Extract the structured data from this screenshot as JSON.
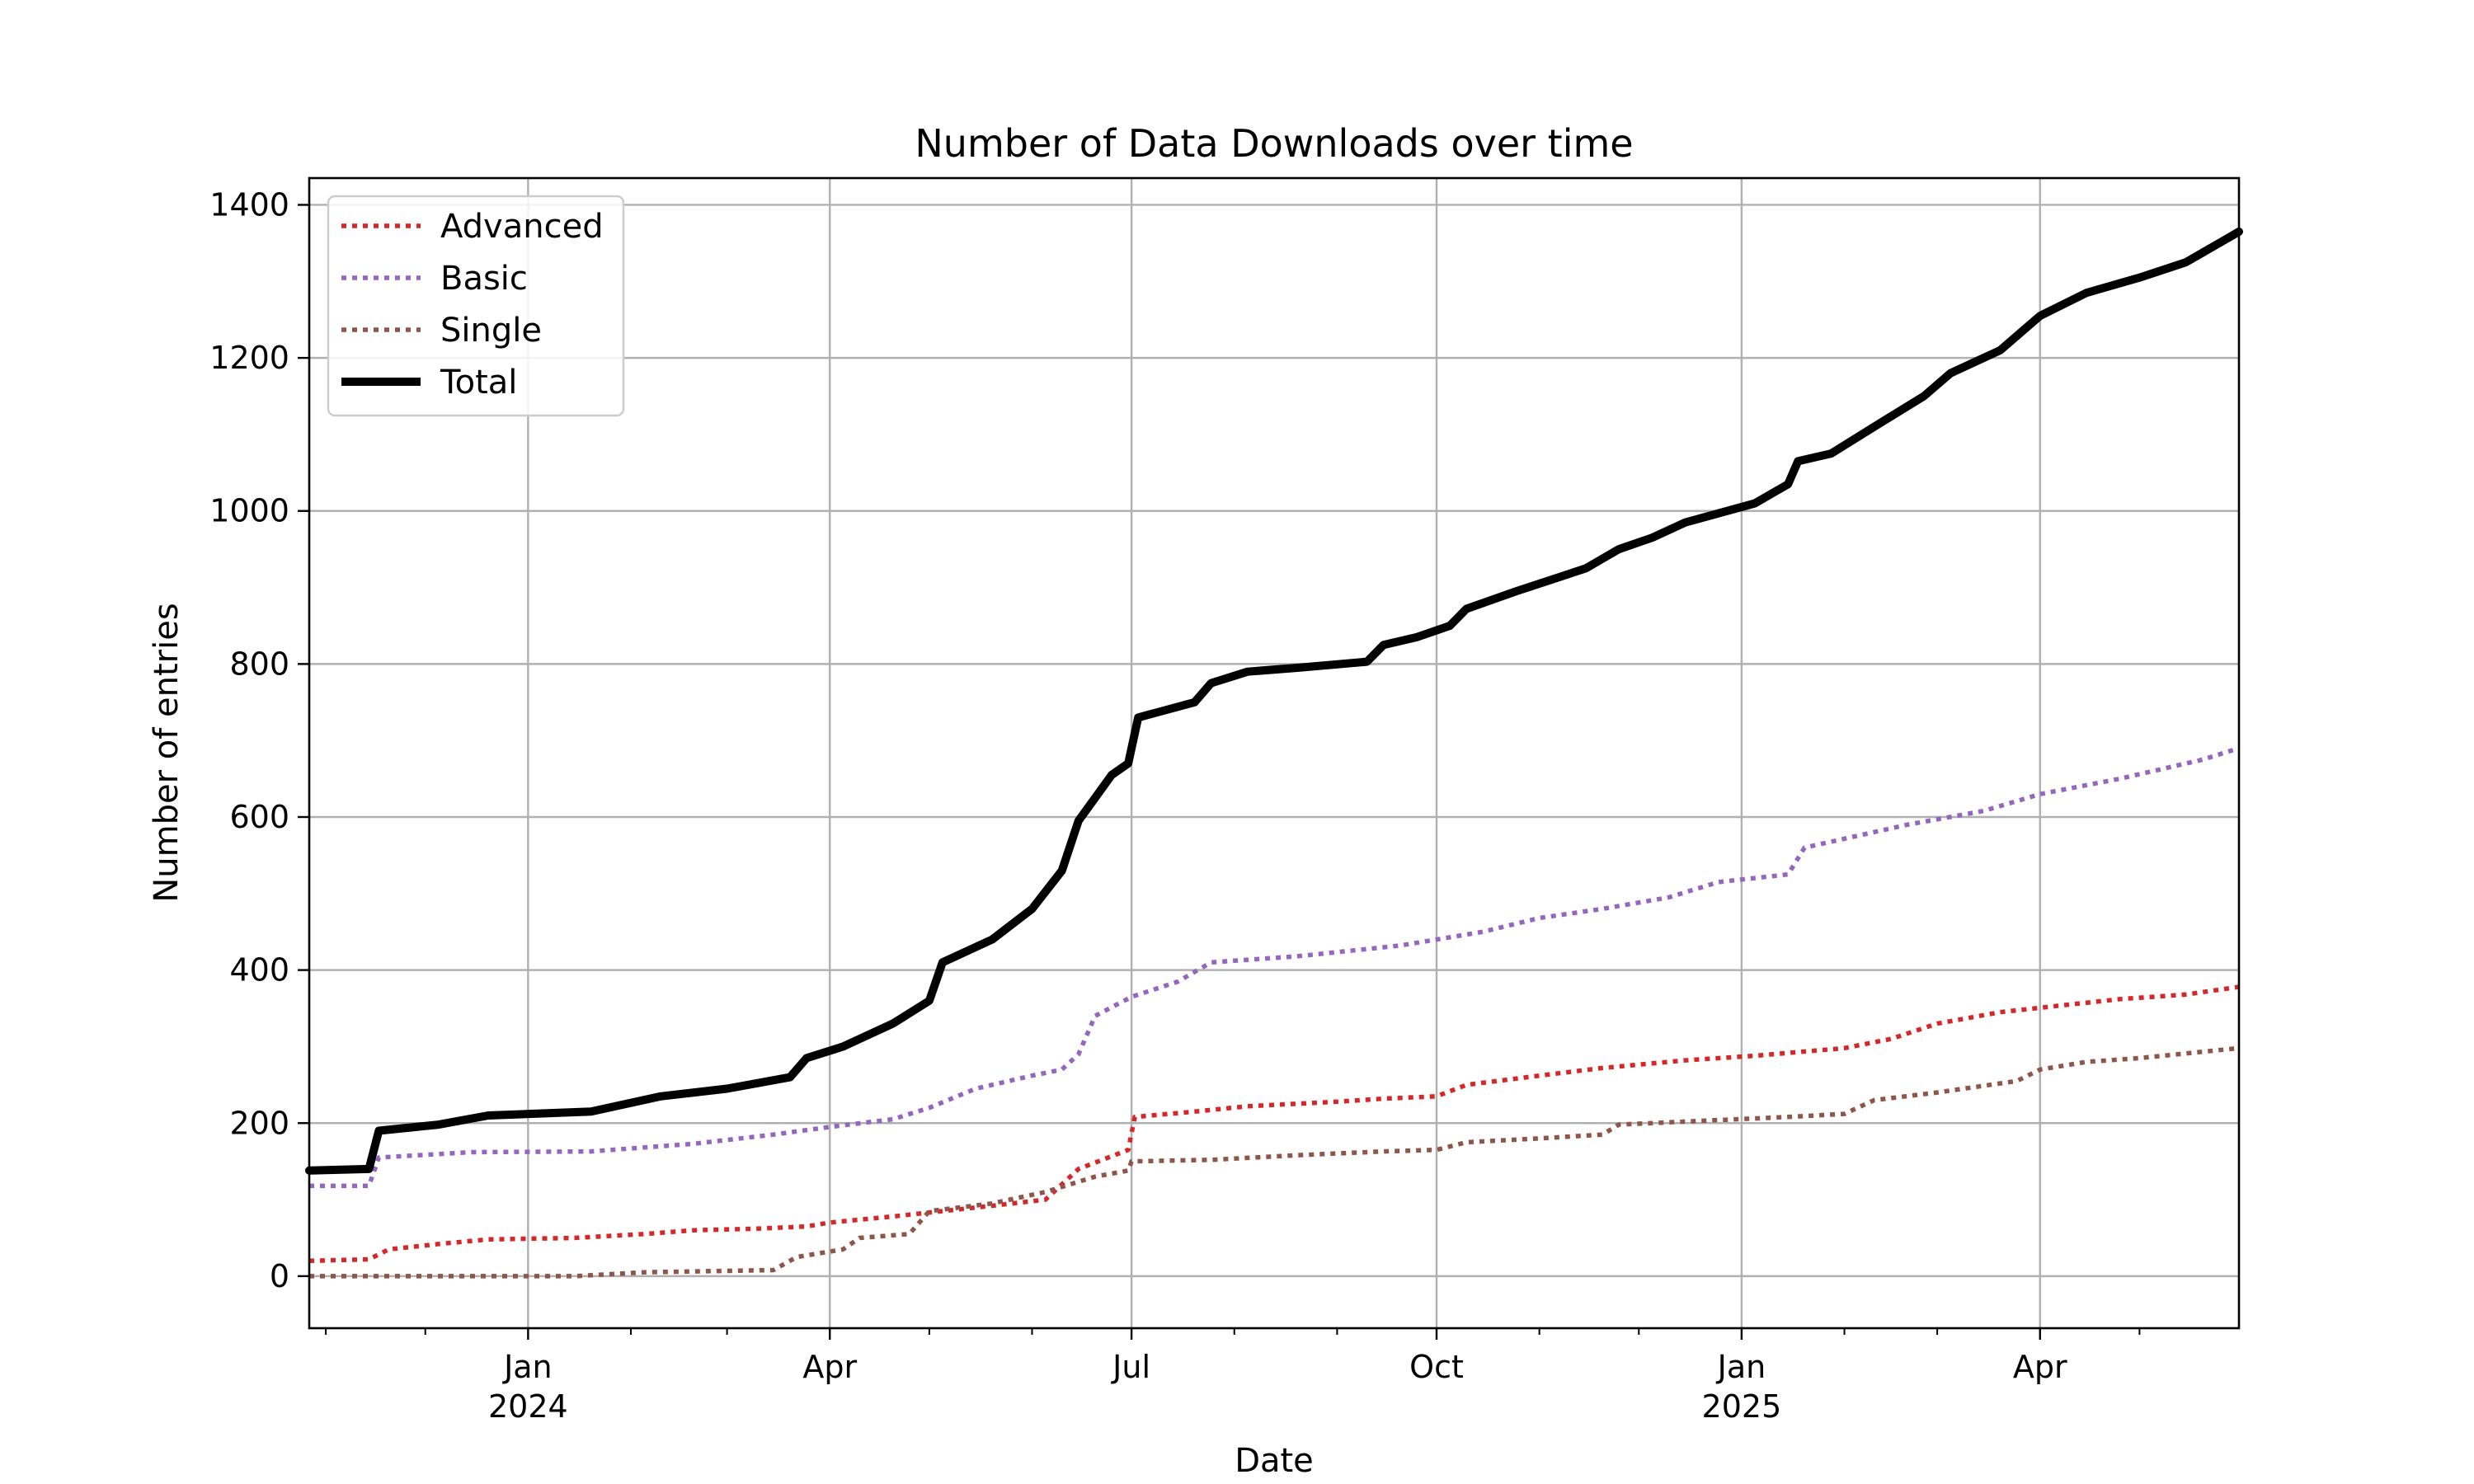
{
  "chart_data": {
    "type": "line",
    "title": "Number of Data Downloads over time",
    "xlabel": "Date",
    "ylabel": "Number of entries",
    "ylim": [
      -68,
      1435
    ],
    "xlim": [
      "2023-10-27",
      "2025-05-31"
    ],
    "yticks": [
      0,
      200,
      400,
      600,
      800,
      1000,
      1200,
      1400
    ],
    "xticks": [
      {
        "date": "2024-01-01",
        "label": "Jan",
        "year": "2024"
      },
      {
        "date": "2024-04-01",
        "label": "Apr",
        "year": ""
      },
      {
        "date": "2024-07-01",
        "label": "Jul",
        "year": ""
      },
      {
        "date": "2024-10-01",
        "label": "Oct",
        "year": ""
      },
      {
        "date": "2025-01-01",
        "label": "Jan",
        "year": "2025"
      },
      {
        "date": "2025-04-01",
        "label": "Apr",
        "year": ""
      }
    ],
    "grid": true,
    "legend_position": "top-left",
    "series": [
      {
        "name": "Advanced",
        "color": "#d62728",
        "style": "dotted",
        "points": [
          [
            "2023-10-27",
            20
          ],
          [
            "2023-11-14",
            22
          ],
          [
            "2023-11-20",
            35
          ],
          [
            "2023-12-05",
            42
          ],
          [
            "2023-12-20",
            48
          ],
          [
            "2024-01-15",
            50
          ],
          [
            "2024-02-05",
            55
          ],
          [
            "2024-02-20",
            60
          ],
          [
            "2024-03-10",
            62
          ],
          [
            "2024-03-25",
            65
          ],
          [
            "2024-04-01",
            70
          ],
          [
            "2024-04-20",
            78
          ],
          [
            "2024-05-05",
            85
          ],
          [
            "2024-05-20",
            92
          ],
          [
            "2024-06-05",
            100
          ],
          [
            "2024-06-15",
            140
          ],
          [
            "2024-06-30",
            165
          ],
          [
            "2024-07-02",
            208
          ],
          [
            "2024-07-20",
            215
          ],
          [
            "2024-08-05",
            222
          ],
          [
            "2024-09-01",
            228
          ],
          [
            "2024-09-15",
            232
          ],
          [
            "2024-10-01",
            235
          ],
          [
            "2024-10-10",
            250
          ],
          [
            "2024-11-01",
            262
          ],
          [
            "2024-11-20",
            272
          ],
          [
            "2024-12-15",
            282
          ],
          [
            "2025-01-05",
            288
          ],
          [
            "2025-02-01",
            298
          ],
          [
            "2025-02-15",
            310
          ],
          [
            "2025-03-01",
            330
          ],
          [
            "2025-03-20",
            345
          ],
          [
            "2025-04-10",
            355
          ],
          [
            "2025-04-25",
            362
          ],
          [
            "2025-05-15",
            368
          ],
          [
            "2025-05-31",
            378
          ]
        ]
      },
      {
        "name": "Basic",
        "color": "#9467bd",
        "style": "dotted",
        "points": [
          [
            "2023-10-27",
            118
          ],
          [
            "2023-11-14",
            118
          ],
          [
            "2023-11-17",
            155
          ],
          [
            "2023-12-15",
            162
          ],
          [
            "2024-01-20",
            163
          ],
          [
            "2024-02-20",
            173
          ],
          [
            "2024-03-15",
            185
          ],
          [
            "2024-04-01",
            195
          ],
          [
            "2024-04-20",
            205
          ],
          [
            "2024-05-01",
            220
          ],
          [
            "2024-05-15",
            245
          ],
          [
            "2024-06-01",
            262
          ],
          [
            "2024-06-10",
            270
          ],
          [
            "2024-06-15",
            290
          ],
          [
            "2024-06-20",
            340
          ],
          [
            "2024-07-01",
            365
          ],
          [
            "2024-07-15",
            385
          ],
          [
            "2024-07-25",
            410
          ],
          [
            "2024-08-20",
            418
          ],
          [
            "2024-09-20",
            432
          ],
          [
            "2024-10-15",
            450
          ],
          [
            "2024-11-01",
            468
          ],
          [
            "2024-11-20",
            480
          ],
          [
            "2024-12-10",
            495
          ],
          [
            "2024-12-25",
            515
          ],
          [
            "2025-01-15",
            525
          ],
          [
            "2025-01-20",
            560
          ],
          [
            "2025-02-20",
            590
          ],
          [
            "2025-03-15",
            608
          ],
          [
            "2025-04-01",
            630
          ],
          [
            "2025-04-25",
            650
          ],
          [
            "2025-05-20",
            675
          ],
          [
            "2025-05-31",
            690
          ]
        ]
      },
      {
        "name": "Single",
        "color": "#8c564b",
        "style": "dotted",
        "points": [
          [
            "2023-10-27",
            0
          ],
          [
            "2024-01-15",
            0
          ],
          [
            "2024-02-05",
            5
          ],
          [
            "2024-03-15",
            8
          ],
          [
            "2024-03-22",
            25
          ],
          [
            "2024-04-05",
            35
          ],
          [
            "2024-04-10",
            50
          ],
          [
            "2024-04-25",
            55
          ],
          [
            "2024-05-01",
            85
          ],
          [
            "2024-05-20",
            95
          ],
          [
            "2024-06-05",
            110
          ],
          [
            "2024-06-20",
            130
          ],
          [
            "2024-06-30",
            138
          ],
          [
            "2024-07-01",
            150
          ],
          [
            "2024-07-25",
            152
          ],
          [
            "2024-08-20",
            158
          ],
          [
            "2024-09-15",
            163
          ],
          [
            "2024-10-01",
            165
          ],
          [
            "2024-10-10",
            175
          ],
          [
            "2024-11-01",
            180
          ],
          [
            "2024-11-20",
            185
          ],
          [
            "2024-11-25",
            198
          ],
          [
            "2024-12-15",
            202
          ],
          [
            "2025-01-15",
            208
          ],
          [
            "2025-02-01",
            212
          ],
          [
            "2025-02-10",
            230
          ],
          [
            "2025-03-01",
            240
          ],
          [
            "2025-03-25",
            255
          ],
          [
            "2025-04-01",
            270
          ],
          [
            "2025-04-15",
            280
          ],
          [
            "2025-05-01",
            285
          ],
          [
            "2025-05-31",
            298
          ]
        ]
      },
      {
        "name": "Total",
        "color": "#000000",
        "style": "solid",
        "points": [
          [
            "2023-10-27",
            138
          ],
          [
            "2023-11-14",
            140
          ],
          [
            "2023-11-17",
            190
          ],
          [
            "2023-12-05",
            198
          ],
          [
            "2023-12-20",
            210
          ],
          [
            "2024-01-20",
            215
          ],
          [
            "2024-02-10",
            235
          ],
          [
            "2024-03-01",
            245
          ],
          [
            "2024-03-20",
            260
          ],
          [
            "2024-03-25",
            285
          ],
          [
            "2024-04-05",
            300
          ],
          [
            "2024-04-20",
            330
          ],
          [
            "2024-05-01",
            360
          ],
          [
            "2024-05-05",
            410
          ],
          [
            "2024-05-20",
            440
          ],
          [
            "2024-06-01",
            480
          ],
          [
            "2024-06-10",
            530
          ],
          [
            "2024-06-15",
            595
          ],
          [
            "2024-06-20",
            625
          ],
          [
            "2024-06-25",
            655
          ],
          [
            "2024-06-30",
            670
          ],
          [
            "2024-07-03",
            730
          ],
          [
            "2024-07-20",
            750
          ],
          [
            "2024-07-25",
            775
          ],
          [
            "2024-08-05",
            790
          ],
          [
            "2024-08-20",
            795
          ],
          [
            "2024-09-10",
            803
          ],
          [
            "2024-09-15",
            825
          ],
          [
            "2024-09-25",
            835
          ],
          [
            "2024-10-05",
            850
          ],
          [
            "2024-10-10",
            872
          ],
          [
            "2024-10-25",
            895
          ],
          [
            "2024-11-15",
            925
          ],
          [
            "2024-11-25",
            950
          ],
          [
            "2024-12-05",
            965
          ],
          [
            "2024-12-15",
            985
          ],
          [
            "2025-01-05",
            1010
          ],
          [
            "2025-01-15",
            1035
          ],
          [
            "2025-01-18",
            1065
          ],
          [
            "2025-01-28",
            1075
          ],
          [
            "2025-02-10",
            1110
          ],
          [
            "2025-02-25",
            1150
          ],
          [
            "2025-03-05",
            1180
          ],
          [
            "2025-03-20",
            1210
          ],
          [
            "2025-04-01",
            1255
          ],
          [
            "2025-04-15",
            1285
          ],
          [
            "2025-05-01",
            1305
          ],
          [
            "2025-05-15",
            1325
          ],
          [
            "2025-05-25",
            1350
          ],
          [
            "2025-05-31",
            1365
          ]
        ]
      }
    ]
  }
}
